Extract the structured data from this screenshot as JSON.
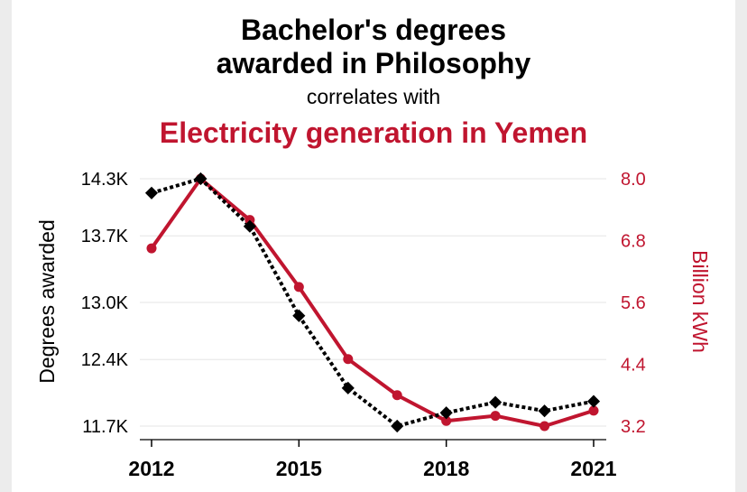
{
  "chart_data": {
    "type": "line",
    "title_line1": "Bachelor's degrees",
    "title_line2": "awarded in Philosophy",
    "subtitle": "correlates with",
    "title_series2": "Electricity generation in Yemen",
    "x": [
      2012,
      2013,
      2014,
      2015,
      2016,
      2017,
      2018,
      2019,
      2020,
      2021
    ],
    "x_ticks": [
      "2012",
      "2015",
      "2018",
      "2021"
    ],
    "x_tick_values": [
      2012,
      2015,
      2018,
      2021
    ],
    "xlim": [
      2012,
      2021
    ],
    "ylabel_left": "Degrees awarded",
    "ylabel_right": "Billion kWh",
    "ylim_left": [
      11700,
      14300
    ],
    "ylim_right": [
      3.2,
      8.0
    ],
    "y_ticks_left": [
      "14.3K",
      "13.7K",
      "13.0K",
      "12.4K",
      "11.7K"
    ],
    "y_tick_values_left": [
      14300,
      13700,
      13000,
      12400,
      11700
    ],
    "y_ticks_right": [
      "8.0",
      "6.8",
      "5.6",
      "4.4",
      "3.2"
    ],
    "y_tick_values_right": [
      8.0,
      6.8,
      5.6,
      4.4,
      3.2
    ],
    "grid": true,
    "series": [
      {
        "axis": "left",
        "style": "dotted-diamond",
        "color": "#000000",
        "values": [
          14150,
          14300,
          13800,
          12860,
          12100,
          11700,
          11840,
          11950,
          11860,
          11960
        ]
      },
      {
        "axis": "right",
        "style": "solid-circle",
        "color": "#c0152f",
        "values": [
          6.65,
          8.0,
          7.2,
          5.9,
          4.5,
          3.8,
          3.3,
          3.4,
          3.2,
          3.5
        ]
      }
    ]
  },
  "colors": {
    "accent": "#c0152f",
    "grid": "#e6e6e6",
    "background": "#ffffff",
    "frame": "#ececec"
  }
}
